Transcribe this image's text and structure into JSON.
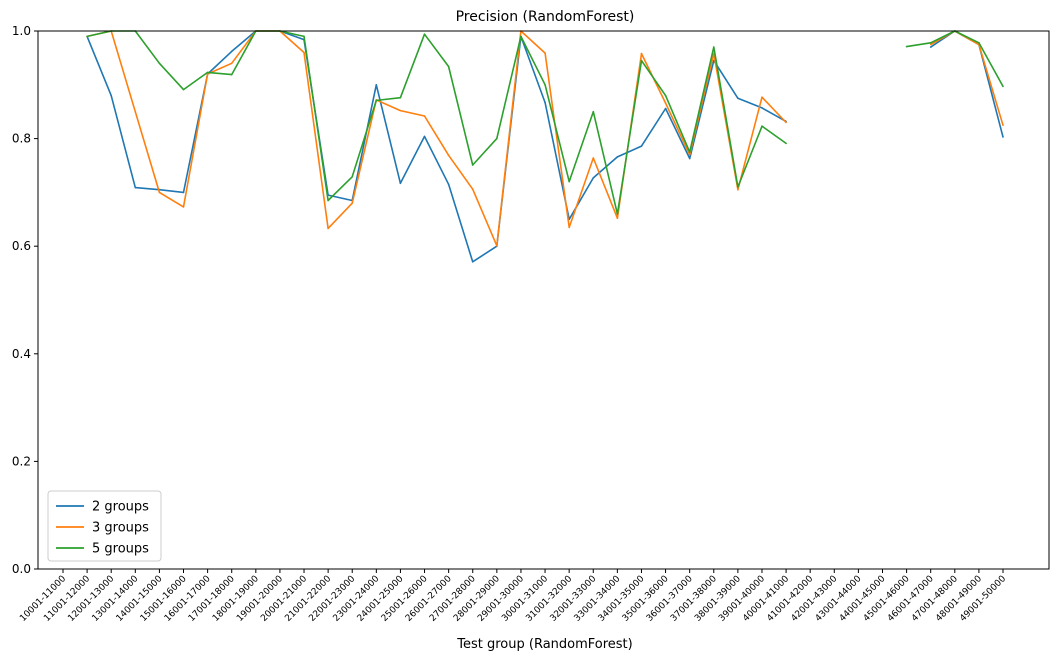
{
  "chart_data": {
    "type": "line",
    "title": "Precision (RandomForest)",
    "xlabel": "Test group (RandomForest)",
    "ylabel": "",
    "ylim": [
      0,
      1
    ],
    "yticks": [
      "0.0",
      "0.2",
      "0.4",
      "0.6",
      "0.8",
      "1.0"
    ],
    "grid": false,
    "legend_position": "lower-left",
    "categories": [
      "10001-11000",
      "11001-12000",
      "12001-13000",
      "13001-14000",
      "14001-15000",
      "15001-16000",
      "16001-17000",
      "17001-18000",
      "18001-19000",
      "19001-20000",
      "20001-21000",
      "21001-22000",
      "22001-23000",
      "23001-24000",
      "24001-25000",
      "25001-26000",
      "26001-27000",
      "27001-28000",
      "28001-29000",
      "29001-30000",
      "30001-31000",
      "31001-32000",
      "32001-33000",
      "33001-34000",
      "34001-35000",
      "35001-36000",
      "36001-37000",
      "37001-38000",
      "38001-39000",
      "39001-40000",
      "40001-41000",
      "41001-42000",
      "42001-43000",
      "43001-44000",
      "44001-45000",
      "45001-46000",
      "46001-47000",
      "47001-48000",
      "48001-49000",
      "49001-50000"
    ],
    "series": [
      {
        "name": "2 groups",
        "color": "#1f77b4",
        "values": [
          null,
          0.99,
          0.88,
          0.709,
          0.705,
          0.7,
          0.92,
          0.962,
          1.0,
          1.0,
          0.984,
          0.695,
          0.685,
          0.9,
          0.717,
          0.804,
          0.715,
          0.571,
          0.6,
          0.99,
          0.867,
          0.65,
          0.727,
          0.766,
          0.786,
          0.856,
          0.763,
          0.945,
          0.875,
          0.857,
          0.832,
          null,
          null,
          null,
          null,
          null,
          0.97,
          1.0,
          0.975,
          0.803
        ]
      },
      {
        "name": "3 groups",
        "color": "#ff7f0e",
        "values": [
          null,
          0.99,
          1.0,
          0.85,
          0.7,
          0.673,
          0.92,
          0.94,
          1.0,
          1.0,
          0.96,
          0.633,
          0.68,
          0.872,
          0.852,
          0.842,
          0.769,
          0.706,
          0.601,
          1.0,
          0.959,
          0.635,
          0.764,
          0.652,
          0.958,
          0.866,
          0.77,
          0.958,
          0.705,
          0.877,
          0.83,
          null,
          null,
          null,
          null,
          null,
          0.975,
          1.0,
          0.975,
          0.825
        ]
      },
      {
        "name": "5 groups",
        "color": "#2ca02c",
        "values": [
          null,
          0.99,
          1.0,
          1.0,
          0.94,
          0.891,
          0.923,
          0.919,
          1.0,
          1.0,
          0.99,
          0.685,
          0.729,
          0.871,
          0.876,
          0.994,
          0.934,
          0.751,
          0.8,
          0.99,
          0.9,
          0.72,
          0.85,
          0.66,
          0.945,
          0.88,
          0.775,
          0.97,
          0.71,
          0.823,
          0.791,
          null,
          null,
          null,
          null,
          0.971,
          0.978,
          1.0,
          0.978,
          0.897
        ]
      }
    ]
  }
}
